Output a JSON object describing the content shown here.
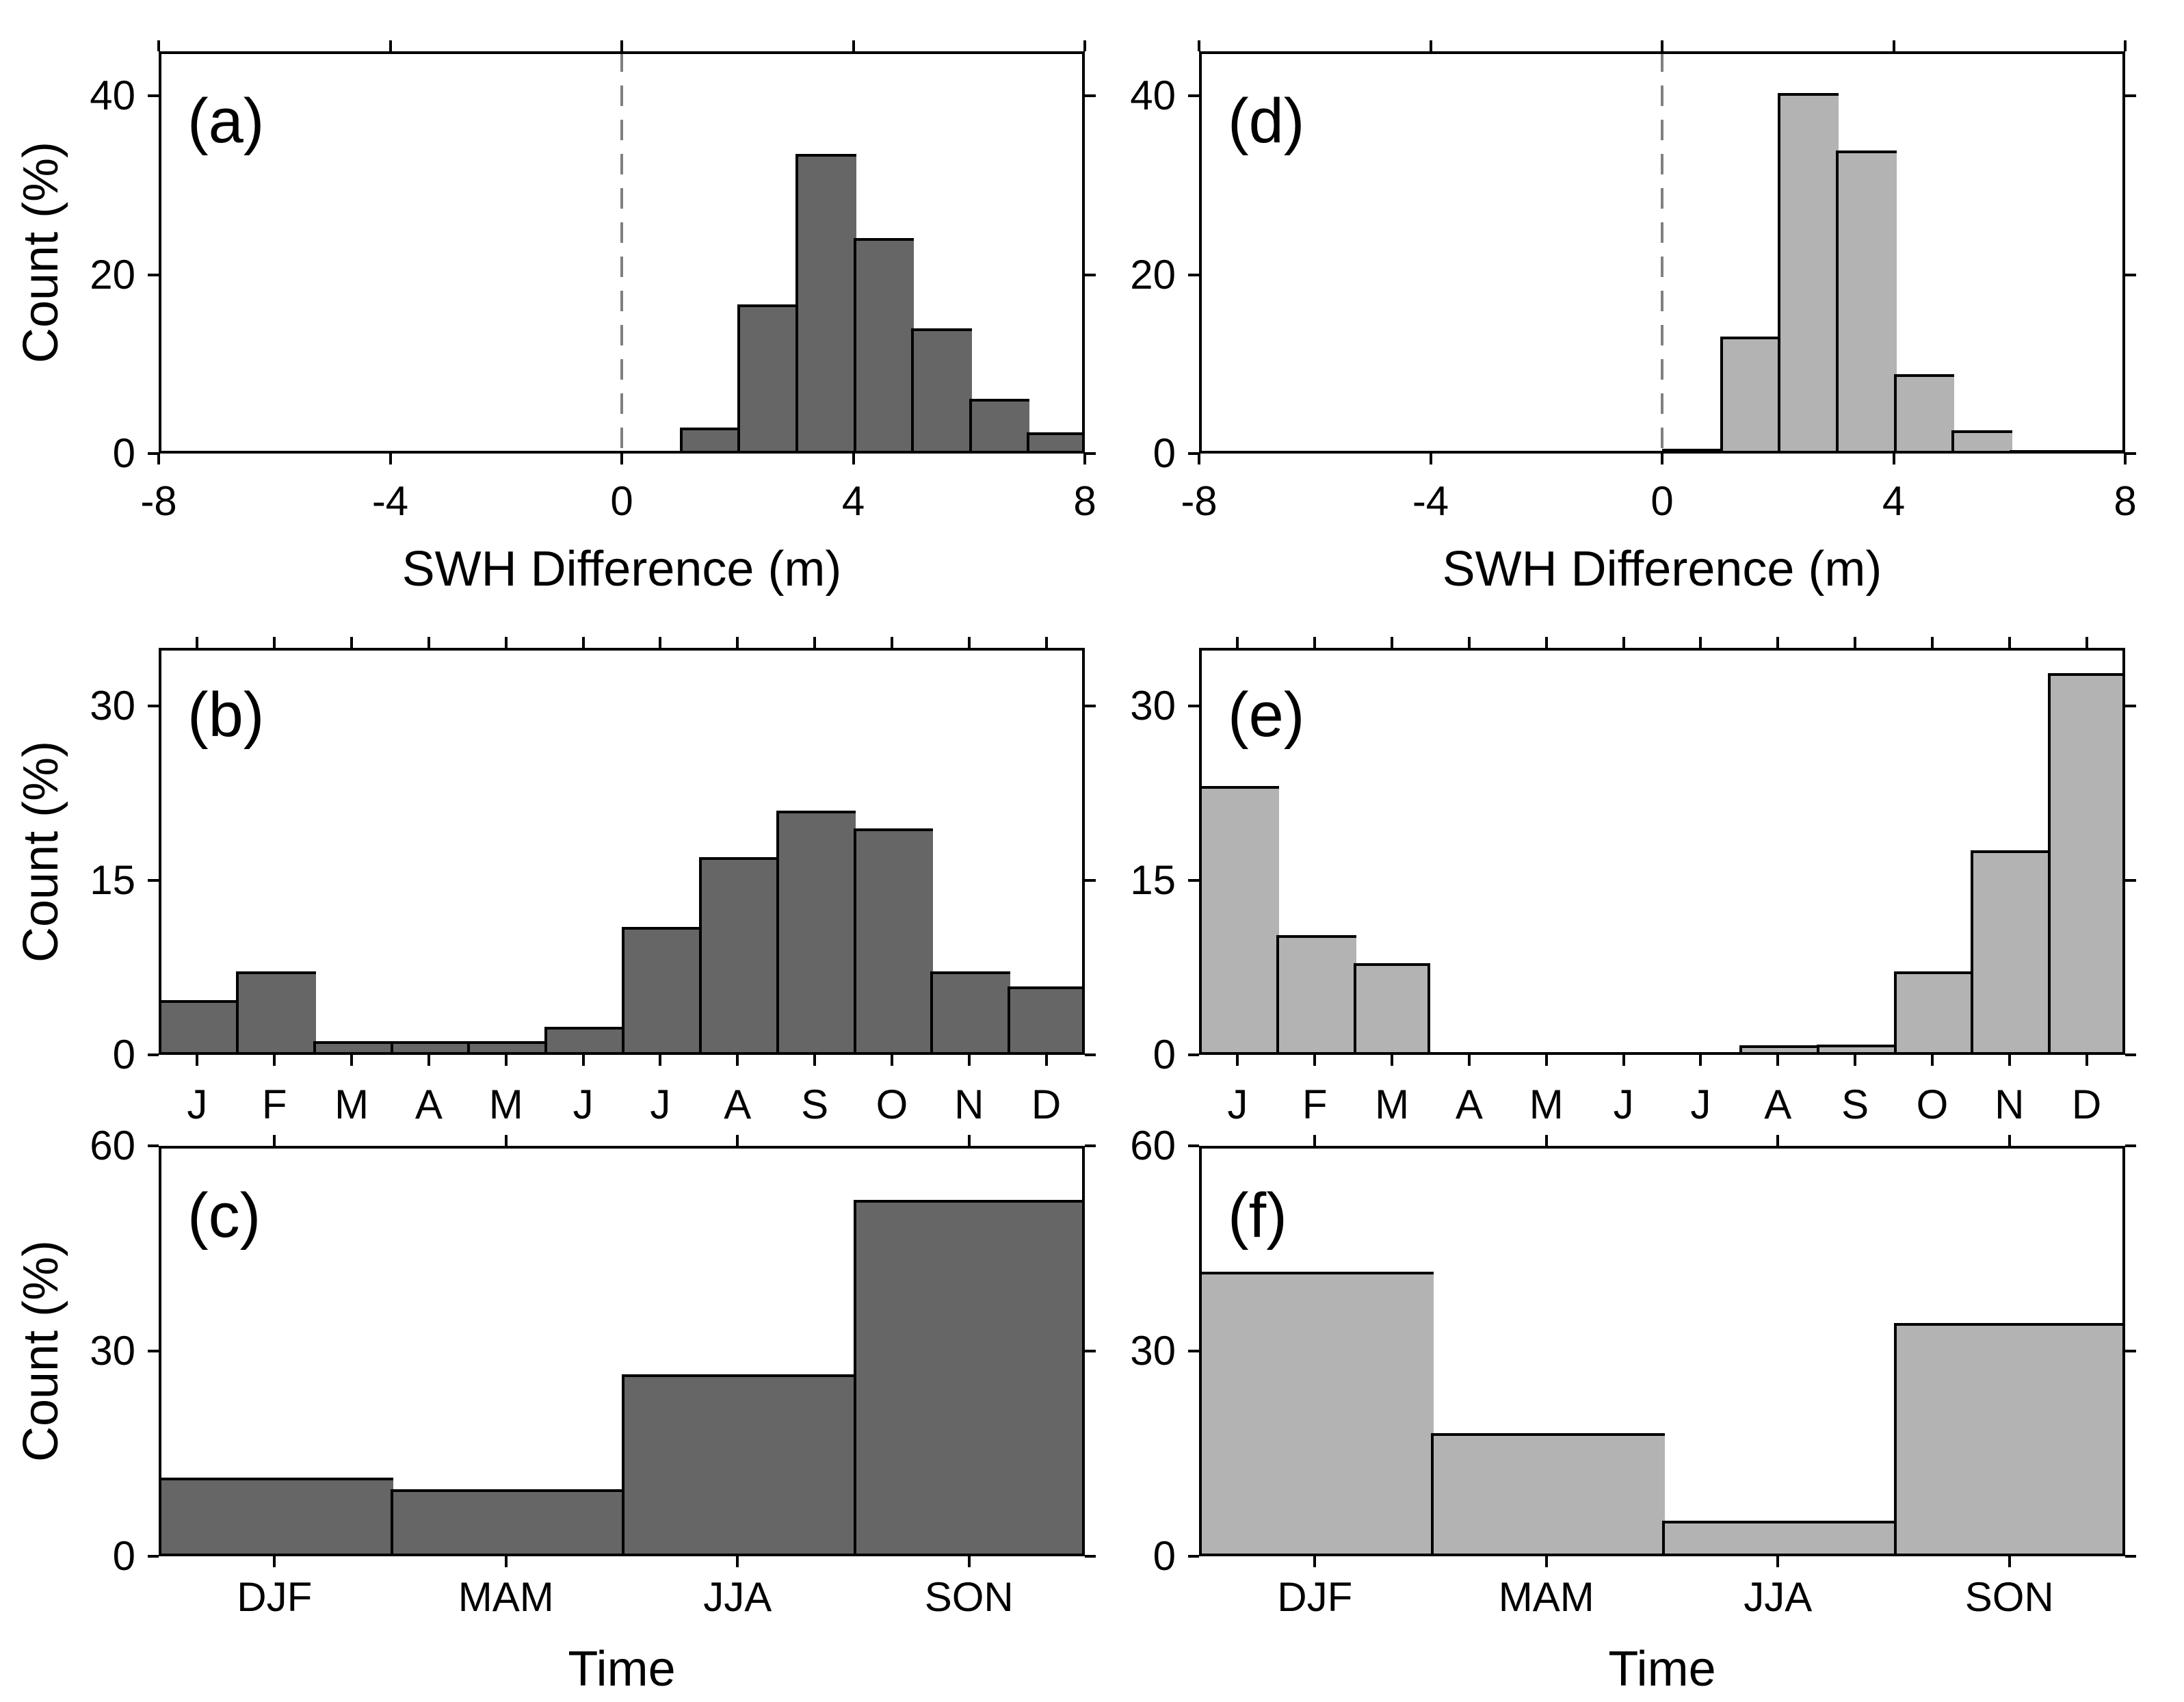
{
  "style": {
    "background": "#ffffff",
    "dark_fill": "#666666",
    "light_fill": "#b3b3b3",
    "bar_edge": "#000000",
    "axis_color": "#000000",
    "dashed_line_color": "#808080"
  },
  "chart_data": [
    {
      "panel": "(a)",
      "type": "bar",
      "xlabel": "SWH Difference (m)",
      "ylabel": "Count (%)",
      "xlim": [
        -8,
        8
      ],
      "xticks": [
        -8,
        -4,
        0,
        4,
        8
      ],
      "ylim": [
        0,
        45
      ],
      "yticks": [
        0,
        20,
        40
      ],
      "bin_start": -8,
      "bin_width": 1,
      "values": [
        0,
        0,
        0,
        0,
        0,
        0,
        0,
        0,
        0,
        2.9,
        16.7,
        33.5,
        24.1,
        14.0,
        6.1,
        2.4
      ],
      "bar_color": "#666666",
      "zero_dashed_line": true,
      "grid": false,
      "legend": "none"
    },
    {
      "panel": "(d)",
      "type": "bar",
      "xlabel": "SWH Difference (m)",
      "ylabel": "",
      "xlim": [
        -8,
        8
      ],
      "xticks": [
        -8,
        -4,
        0,
        4,
        8
      ],
      "ylim": [
        0,
        45
      ],
      "yticks": [
        0,
        20,
        40
      ],
      "bin_start": -8,
      "bin_width": 1,
      "values": [
        0,
        0,
        0,
        0,
        0,
        0,
        0,
        0,
        0.5,
        13.1,
        40.3,
        33.9,
        8.9,
        2.6,
        0.4,
        0.4
      ],
      "bar_color": "#b3b3b3",
      "zero_dashed_line": true,
      "grid": false,
      "legend": "none"
    },
    {
      "panel": "(b)",
      "type": "bar",
      "xlabel": "",
      "ylabel": "Count (%)",
      "categories": [
        "J",
        "F",
        "M",
        "A",
        "M",
        "J",
        "J",
        "A",
        "S",
        "O",
        "N",
        "D"
      ],
      "ylim": [
        0,
        35
      ],
      "yticks": [
        0,
        15,
        30
      ],
      "values": [
        4.7,
        7.2,
        1.2,
        1.2,
        1.2,
        2.4,
        11.0,
        17.0,
        21.0,
        19.5,
        7.2,
        5.9
      ],
      "bar_color": "#666666",
      "zero_dashed_line": false,
      "grid": false,
      "legend": "none"
    },
    {
      "panel": "(e)",
      "type": "bar",
      "xlabel": "",
      "ylabel": "",
      "categories": [
        "J",
        "F",
        "M",
        "A",
        "M",
        "J",
        "J",
        "A",
        "S",
        "O",
        "N",
        "D"
      ],
      "ylim": [
        0,
        35
      ],
      "yticks": [
        0,
        15,
        30
      ],
      "values": [
        23.1,
        10.3,
        7.9,
        0,
        0,
        0,
        0,
        0.8,
        0.9,
        7.2,
        17.6,
        32.8
      ],
      "bar_color": "#b3b3b3",
      "zero_dashed_line": false,
      "grid": false,
      "legend": "none"
    },
    {
      "panel": "(c)",
      "type": "bar",
      "xlabel": "Time",
      "ylabel": "Count (%)",
      "categories": [
        "DJF",
        "MAM",
        "JJA",
        "SON"
      ],
      "ylim": [
        0,
        60
      ],
      "yticks": [
        0,
        30,
        60
      ],
      "values": [
        11.5,
        9.8,
        26.6,
        52.1
      ],
      "bar_color": "#666666",
      "zero_dashed_line": false,
      "grid": false,
      "legend": "none"
    },
    {
      "panel": "(f)",
      "type": "bar",
      "xlabel": "Time",
      "ylabel": "",
      "categories": [
        "DJF",
        "MAM",
        "JJA",
        "SON"
      ],
      "ylim": [
        0,
        60
      ],
      "yticks": [
        0,
        30,
        60
      ],
      "values": [
        41.6,
        18.0,
        5.2,
        34.1
      ],
      "bar_color": "#b3b3b3",
      "zero_dashed_line": false,
      "grid": false,
      "legend": "none"
    }
  ]
}
